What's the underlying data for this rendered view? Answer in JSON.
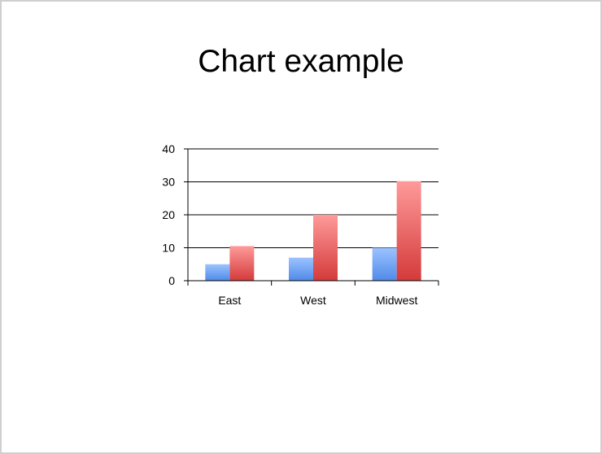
{
  "slide": {
    "title": "Chart example"
  },
  "colors": {
    "series_blue_top": "#9cc3ff",
    "series_blue_bottom": "#4f8ae8",
    "series_red_top": "#ff9a9a",
    "series_red_bottom": "#d43a3a",
    "axis": "#000000",
    "grid": "#000000"
  },
  "chart_data": {
    "type": "bar",
    "categories": [
      "East",
      "West",
      "Midwest"
    ],
    "series": [
      {
        "values": [
          5,
          7,
          10
        ]
      },
      {
        "values": [
          10.5,
          20,
          30.2
        ]
      }
    ],
    "ylim": [
      0,
      40
    ],
    "yticks": [
      "0",
      "10",
      "20",
      "30",
      "40"
    ],
    "ytick_values": [
      0,
      10,
      20,
      30,
      40
    ],
    "grid": true,
    "legend": "none"
  }
}
